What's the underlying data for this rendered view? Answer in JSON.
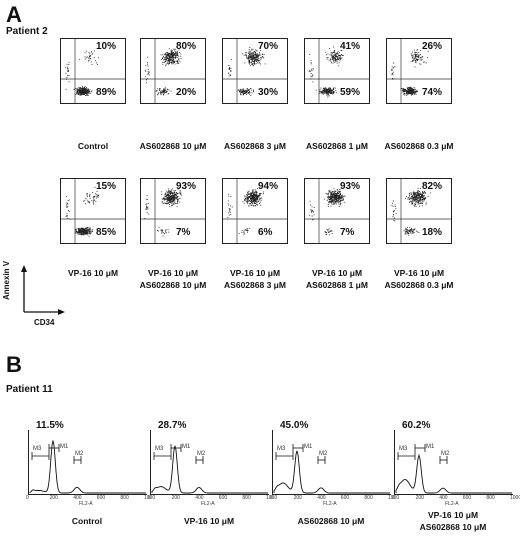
{
  "panelA": {
    "letter": "A",
    "patient": "Patient 2",
    "row1": [
      {
        "top": "10%",
        "bottom": "89%",
        "label": "Control"
      },
      {
        "top": "80%",
        "bottom": "20%",
        "label": "AS602868 10 μM"
      },
      {
        "top": "70%",
        "bottom": "30%",
        "label": "AS602868 3 μM"
      },
      {
        "top": "41%",
        "bottom": "59%",
        "label": "AS602868 1 μM"
      },
      {
        "top": "26%",
        "bottom": "74%",
        "label": "AS602868 0.3 μM"
      }
    ],
    "row2": [
      {
        "top": "15%",
        "bottom": "85%",
        "label1": "VP-16 10 μM",
        "label2": ""
      },
      {
        "top": "93%",
        "bottom": "7%",
        "label1": "VP-16 10 μM",
        "label2": "AS602868 10 μM"
      },
      {
        "top": "94%",
        "bottom": "6%",
        "label1": "VP-16 10 μM",
        "label2": "AS602868 3 μM"
      },
      {
        "top": "93%",
        "bottom": "7%",
        "label1": "VP-16 10 μM",
        "label2": "AS602868 1 μM"
      },
      {
        "top": "82%",
        "bottom": "18%",
        "label1": "VP-16 10 μM",
        "label2": "AS602868 0.3 μM"
      }
    ],
    "axis_y": "Annexin V",
    "axis_x": "CD34"
  },
  "panelB": {
    "letter": "B",
    "patient": "Patient 11",
    "histograms": [
      {
        "pct": "11.5%",
        "label1": "Control",
        "label2": ""
      },
      {
        "pct": "28.7%",
        "label1": "VP-16 10 μM",
        "label2": ""
      },
      {
        "pct": "45.0%",
        "label1": "AS602868 10 μM",
        "label2": ""
      },
      {
        "pct": "60.2%",
        "label1": "VP-16 10 μM",
        "label2": "AS602868 10 μM"
      }
    ],
    "markers": {
      "m1": "M1",
      "m2": "M2",
      "m3": "M3"
    },
    "xaxis": "FL2-A",
    "xticks": [
      "0",
      "200",
      "400",
      "600",
      "800",
      "1000"
    ]
  }
}
